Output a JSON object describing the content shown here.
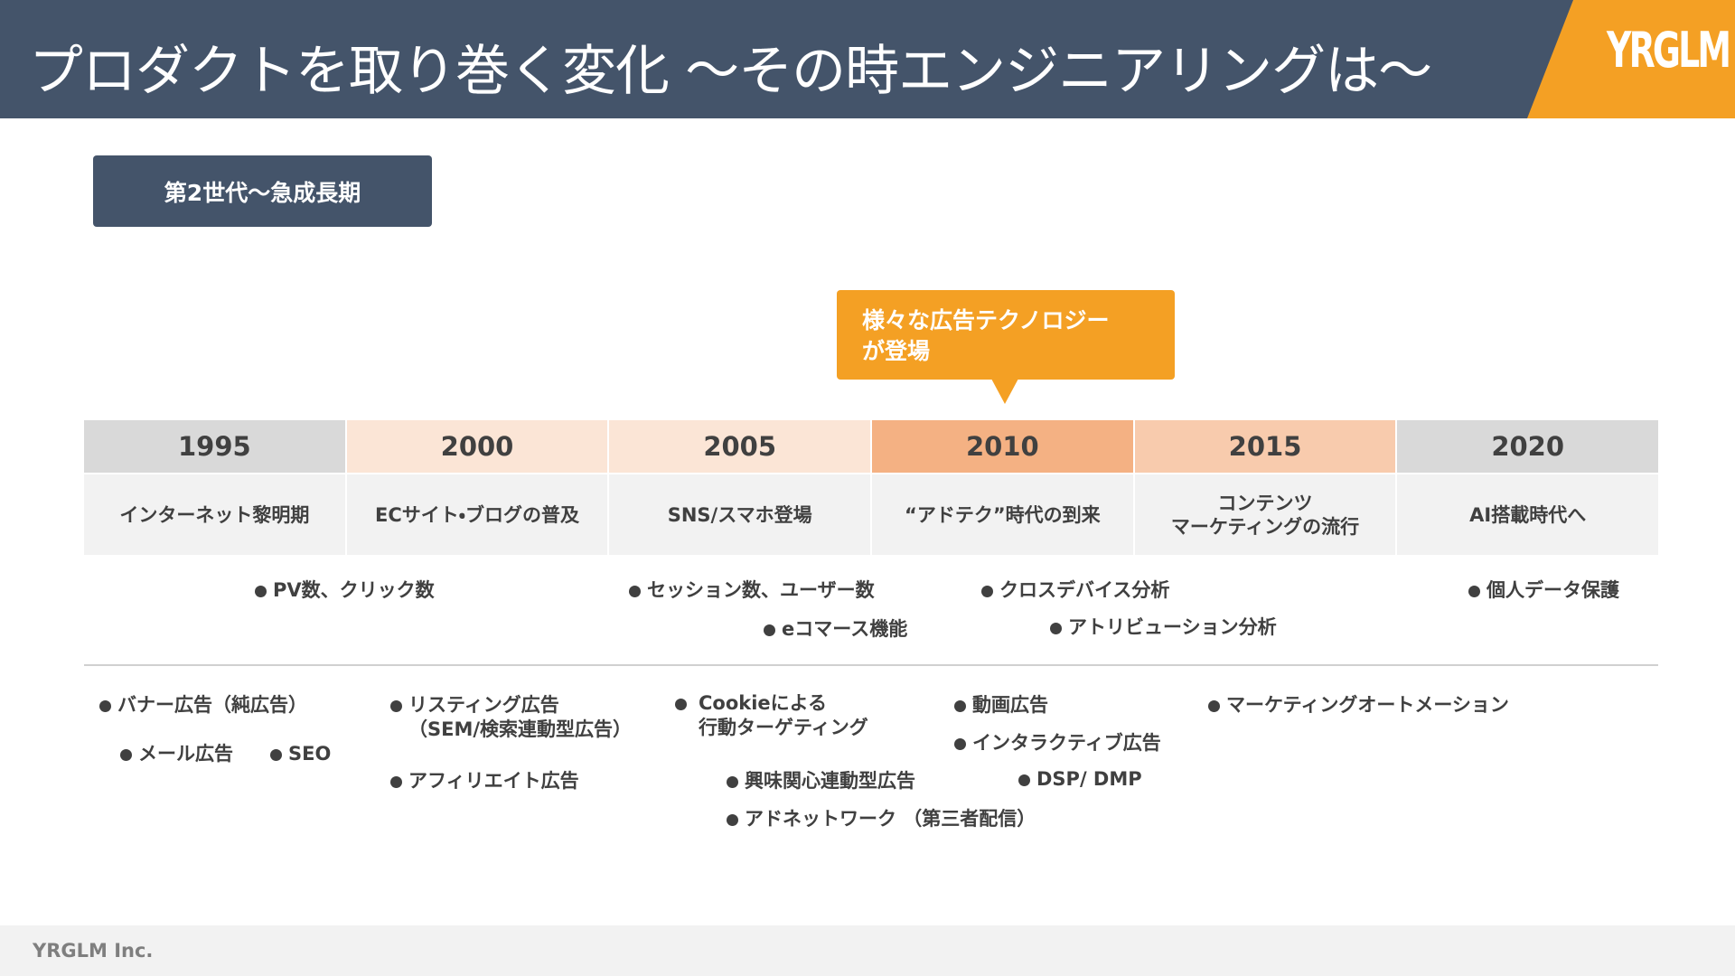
{
  "header": {
    "title": "プロダクトを取り巻く変化 〜その時エンジニアリングは〜",
    "logo": "YRGLM"
  },
  "badge": "第2世代〜急成長期",
  "callout": "様々な広告テクノロジー\nが登場",
  "timeline": [
    {
      "year": "1995",
      "label": "インターネット黎明期"
    },
    {
      "year": "2000",
      "label": "ECサイト・ブログの普及"
    },
    {
      "year": "2005",
      "label": "SNS/スマホ登場"
    },
    {
      "year": "2010",
      "label": "“アドテク”時代の到来"
    },
    {
      "year": "2015",
      "label": "コンテンツ\nマーケティングの流行"
    },
    {
      "year": "2020",
      "label": "AI搭載時代へ"
    }
  ],
  "metrics": [
    "PV数、クリック数",
    "セッション数、ユーザー数",
    "eコマース機能",
    "クロスデバイス分析",
    "アトリビューション分析",
    "個人データ保護"
  ],
  "ads": [
    "バナー広告（純広告）",
    "メール広告",
    "SEO",
    "リスティング広告\n（SEM/検索連動型広告）",
    "アフィリエイト広告",
    "Cookieによる\n行動ターゲティング",
    "興味関心連動型広告",
    "アドネットワーク （第三者配信）",
    "動画広告",
    "インタラクティブ広告",
    "DSP/ DMP",
    "マーケティングオートメーション"
  ],
  "footer": "YRGLM Inc."
}
